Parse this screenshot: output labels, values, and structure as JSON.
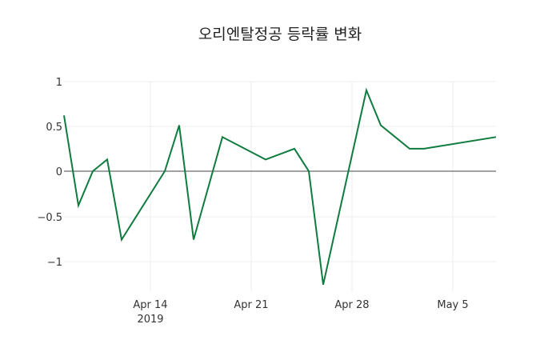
{
  "chart_data": {
    "type": "line",
    "title": "오리엔탈정공 등락률 변화",
    "xlabel": "",
    "ylabel": "",
    "x": [
      "2019-04-08",
      "2019-04-09",
      "2019-04-10",
      "2019-04-11",
      "2019-04-12",
      "2019-04-15",
      "2019-04-16",
      "2019-04-17",
      "2019-04-19",
      "2019-04-22",
      "2019-04-24",
      "2019-04-25",
      "2019-04-26",
      "2019-04-29",
      "2019-04-30",
      "2019-05-02",
      "2019-05-03",
      "2019-05-08"
    ],
    "series": [
      {
        "name": "등락률",
        "color": "#0f7b3f",
        "values": [
          0.62,
          -0.38,
          0,
          0.13,
          -0.76,
          0,
          0.51,
          -0.76,
          0.38,
          0.13,
          0.25,
          0,
          -1.26,
          0.9,
          0.51,
          0.25,
          0.25,
          0.38
        ]
      }
    ],
    "ylim": [
      -1.35,
      1.0
    ],
    "yticks": [
      1,
      0.5,
      0,
      -0.5,
      -1
    ],
    "ytick_labels": [
      "1",
      "0.5",
      "0",
      "−0.5",
      "−1"
    ],
    "xticks": [
      "Apr 14\n2019",
      "Apr 21",
      "Apr 28",
      "May 5"
    ],
    "grid": true,
    "zeroline": true
  },
  "ui": {
    "title": "오리엔탈정공 등락률 변화",
    "xtick_labels": [
      "Apr 14",
      "Apr 21",
      "Apr 28",
      "May 5"
    ],
    "xtick_year": "2019",
    "ytick_labels": [
      "1",
      "0.5",
      "0",
      "−0.5",
      "−1"
    ]
  }
}
